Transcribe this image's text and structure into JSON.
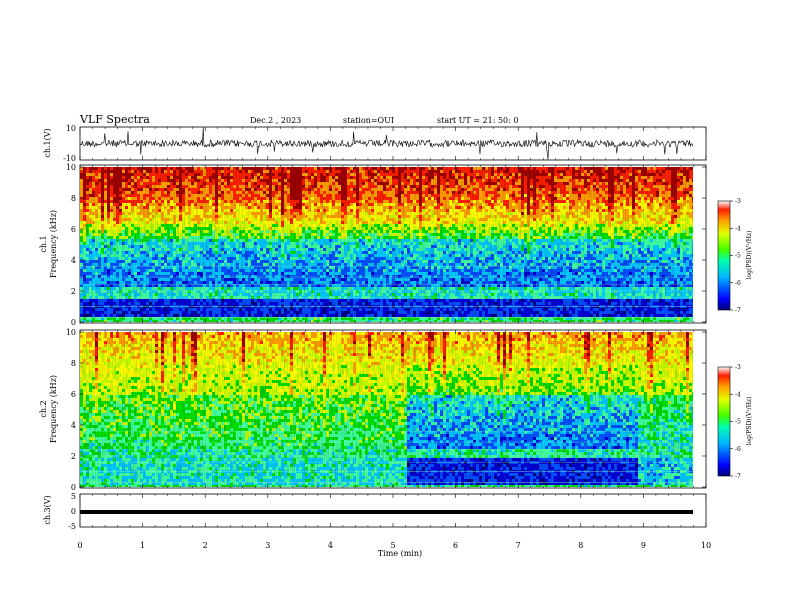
{
  "header": {
    "title": "VLF Spectra",
    "date": "Dec.2 , 2023",
    "station": "station=OUI",
    "start": "start UT = 21: 50: 0"
  },
  "chart_data": [
    {
      "type": "line",
      "panel": "ch1-waveform",
      "ylabel": "ch.1(V)",
      "ylim": [
        -10,
        10
      ],
      "ytick_labels": [
        "10",
        "-10"
      ],
      "xlim": [
        0,
        10
      ]
    },
    {
      "type": "heatmap",
      "panel": "ch1-spectrogram",
      "ylabel_line1": "ch.1",
      "ylabel_line2": "Frequency (kHz)",
      "ylim": [
        0,
        10
      ],
      "yticks": [
        0,
        2,
        4,
        6,
        8,
        10
      ],
      "colorbar": {
        "label": "log(PSD)(V²/Hz)",
        "range": [
          -7,
          -3
        ],
        "ticks": [
          "-3",
          "-4",
          "-5",
          "-6",
          "-7"
        ]
      }
    },
    {
      "type": "heatmap",
      "panel": "ch2-spectrogram",
      "ylabel_line1": "ch.2",
      "ylabel_line2": "Frequency (kHz)",
      "ylim": [
        0,
        10
      ],
      "yticks": [
        0,
        2,
        4,
        6,
        8,
        10
      ],
      "colorbar": {
        "label": "log(PSD)(V²/Hz)",
        "range": [
          -7,
          -3
        ],
        "ticks": [
          "-3",
          "-4",
          "-5",
          "-6",
          "-7"
        ]
      }
    },
    {
      "type": "line",
      "panel": "ch3-waveform",
      "ylabel": "ch.3(V)",
      "ylim": [
        -5,
        5
      ],
      "ytick_labels": [
        "5",
        "0",
        "-5"
      ],
      "x": [
        0,
        9.83
      ],
      "y": [
        -1.2,
        -1.2
      ]
    }
  ],
  "xaxis": {
    "label": "Time (min)",
    "ticks": [
      "0",
      "1",
      "2",
      "3",
      "4",
      "5",
      "6",
      "7",
      "8",
      "9",
      "10"
    ],
    "range": [
      0,
      10
    ]
  },
  "colors": {
    "spectrum": [
      "#00007a",
      "#0000d8",
      "#0050ff",
      "#00c8ff",
      "#40ffa0",
      "#00e000",
      "#c8ff00",
      "#ffff00",
      "#ffa000",
      "#ff2000",
      "#a00000"
    ]
  }
}
